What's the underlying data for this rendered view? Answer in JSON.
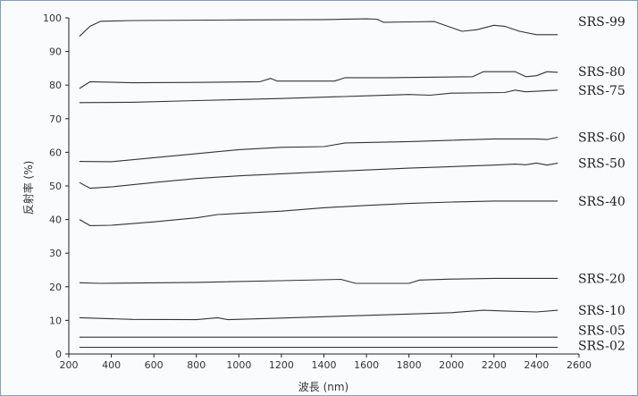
{
  "chart_data": {
    "type": "line",
    "xlabel": "波長 (nm)",
    "ylabel": "反射率 (%)",
    "xlim": [
      200,
      2600
    ],
    "ylim": [
      0,
      100
    ],
    "xticks": [
      200,
      400,
      600,
      800,
      1000,
      1200,
      1400,
      1600,
      1800,
      2000,
      2200,
      2400,
      2600
    ],
    "yticks": [
      0,
      10,
      20,
      30,
      40,
      50,
      60,
      70,
      80,
      90,
      100
    ],
    "grid": false,
    "series": [
      {
        "name": "SRS-99",
        "points": [
          [
            250,
            94.5
          ],
          [
            300,
            97.5
          ],
          [
            350,
            99
          ],
          [
            500,
            99.2
          ],
          [
            1000,
            99.4
          ],
          [
            1400,
            99.5
          ],
          [
            1600,
            99.7
          ],
          [
            1650,
            99.6
          ],
          [
            1680,
            98.7
          ],
          [
            1800,
            98.8
          ],
          [
            1920,
            98.9
          ],
          [
            1960,
            98
          ],
          [
            2050,
            96
          ],
          [
            2120,
            96.5
          ],
          [
            2200,
            97.8
          ],
          [
            2250,
            97.5
          ],
          [
            2320,
            96
          ],
          [
            2400,
            95
          ],
          [
            2500,
            95
          ]
        ]
      },
      {
        "name": "SRS-80",
        "points": [
          [
            250,
            79
          ],
          [
            300,
            81
          ],
          [
            500,
            80.7
          ],
          [
            800,
            80.8
          ],
          [
            1100,
            81
          ],
          [
            1150,
            82
          ],
          [
            1180,
            81.2
          ],
          [
            1450,
            81.2
          ],
          [
            1500,
            82.2
          ],
          [
            1700,
            82.2
          ],
          [
            2100,
            82.5
          ],
          [
            2150,
            84
          ],
          [
            2300,
            84
          ],
          [
            2350,
            82.5
          ],
          [
            2400,
            82.8
          ],
          [
            2450,
            84
          ],
          [
            2500,
            83.8
          ]
        ]
      },
      {
        "name": "SRS-75",
        "points": [
          [
            250,
            74.8
          ],
          [
            500,
            74.9
          ],
          [
            800,
            75.4
          ],
          [
            1200,
            76
          ],
          [
            1600,
            76.8
          ],
          [
            1800,
            77.2
          ],
          [
            1900,
            77
          ],
          [
            2000,
            77.6
          ],
          [
            2250,
            77.8
          ],
          [
            2300,
            78.5
          ],
          [
            2350,
            78
          ],
          [
            2500,
            78.5
          ]
        ]
      },
      {
        "name": "SRS-60",
        "points": [
          [
            250,
            57.3
          ],
          [
            400,
            57.2
          ],
          [
            600,
            58.4
          ],
          [
            800,
            59.6
          ],
          [
            1000,
            60.8
          ],
          [
            1200,
            61.5
          ],
          [
            1400,
            61.7
          ],
          [
            1500,
            62.8
          ],
          [
            1800,
            63.2
          ],
          [
            2200,
            64
          ],
          [
            2400,
            64
          ],
          [
            2450,
            63.8
          ],
          [
            2500,
            64.5
          ]
        ]
      },
      {
        "name": "SRS-50",
        "points": [
          [
            250,
            51
          ],
          [
            300,
            49.3
          ],
          [
            400,
            49.7
          ],
          [
            600,
            51
          ],
          [
            800,
            52.2
          ],
          [
            1000,
            53
          ],
          [
            1400,
            54.2
          ],
          [
            1800,
            55.3
          ],
          [
            2200,
            56.2
          ],
          [
            2300,
            56.5
          ],
          [
            2350,
            56.3
          ],
          [
            2400,
            56.8
          ],
          [
            2450,
            56.2
          ],
          [
            2500,
            56.8
          ]
        ]
      },
      {
        "name": "SRS-40",
        "points": [
          [
            250,
            40
          ],
          [
            300,
            38.2
          ],
          [
            400,
            38.3
          ],
          [
            600,
            39.3
          ],
          [
            800,
            40.5
          ],
          [
            900,
            41.5
          ],
          [
            1200,
            42.5
          ],
          [
            1400,
            43.5
          ],
          [
            1600,
            44.2
          ],
          [
            1800,
            44.8
          ],
          [
            2000,
            45.2
          ],
          [
            2200,
            45.5
          ],
          [
            2500,
            45.5
          ]
        ]
      },
      {
        "name": "SRS-20",
        "points": [
          [
            250,
            21.2
          ],
          [
            350,
            21
          ],
          [
            800,
            21.3
          ],
          [
            1200,
            21.8
          ],
          [
            1480,
            22.2
          ],
          [
            1550,
            21
          ],
          [
            1800,
            21
          ],
          [
            1850,
            22
          ],
          [
            2000,
            22.3
          ],
          [
            2200,
            22.5
          ],
          [
            2400,
            22.5
          ],
          [
            2500,
            22.5
          ]
        ]
      },
      {
        "name": "SRS-10",
        "points": [
          [
            250,
            10.8
          ],
          [
            500,
            10.3
          ],
          [
            800,
            10.2
          ],
          [
            900,
            10.8
          ],
          [
            950,
            10.2
          ],
          [
            1200,
            10.7
          ],
          [
            1600,
            11.5
          ],
          [
            2000,
            12.3
          ],
          [
            2150,
            13
          ],
          [
            2250,
            12.8
          ],
          [
            2400,
            12.5
          ],
          [
            2500,
            13
          ]
        ]
      },
      {
        "name": "SRS-05",
        "points": [
          [
            250,
            5
          ],
          [
            2500,
            5
          ]
        ]
      },
      {
        "name": "SRS-02",
        "points": [
          [
            250,
            2
          ],
          [
            2500,
            2
          ]
        ]
      }
    ],
    "series_label_y": [
      99,
      84,
      78.5,
      64.5,
      56.8,
      45.5,
      22.5,
      13,
      7,
      2.5
    ]
  }
}
